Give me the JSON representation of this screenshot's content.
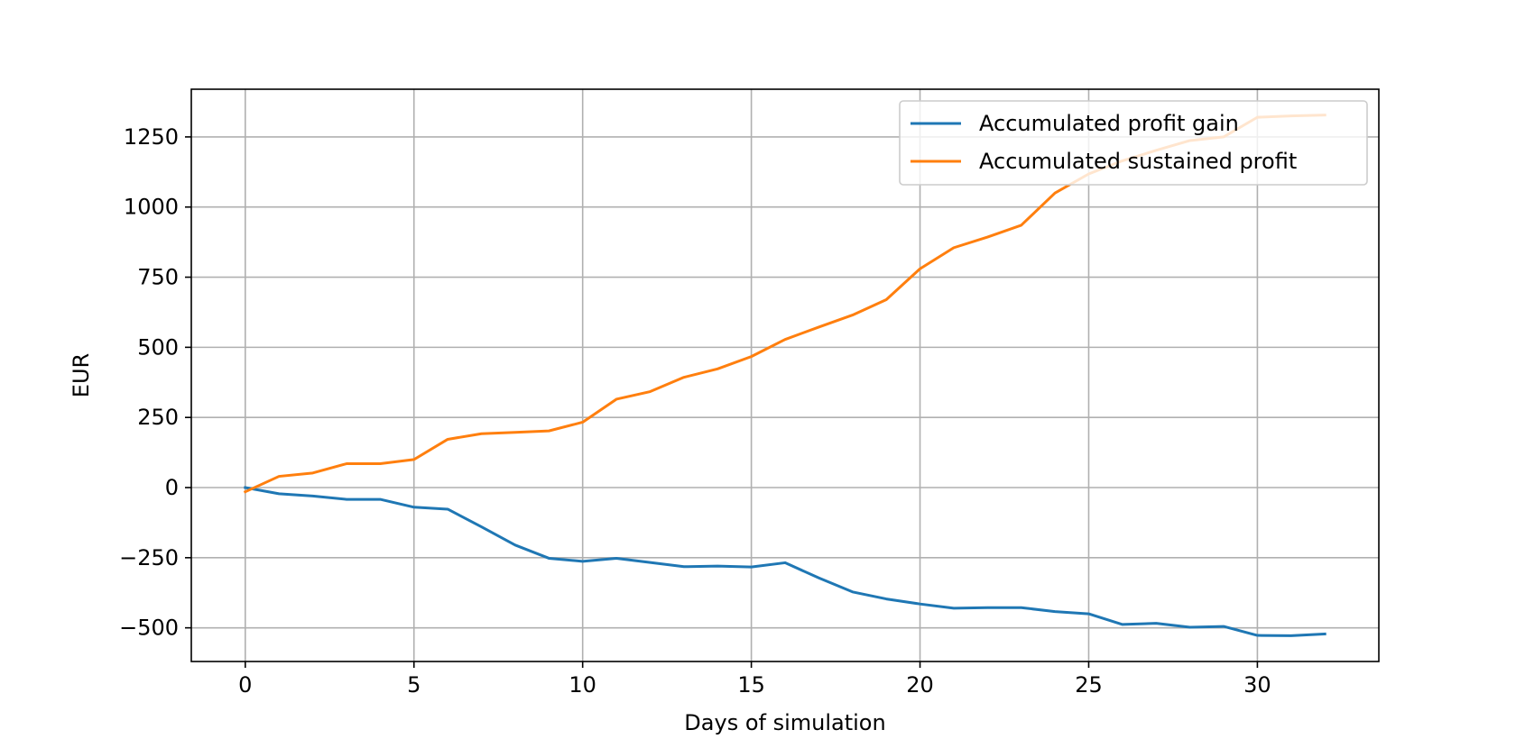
{
  "chart_data": {
    "type": "line",
    "title": "",
    "xlabel": "Days of simulation",
    "ylabel": "EUR",
    "xlim": [
      -1.6,
      33.6
    ],
    "ylim": [
      -620,
      1420
    ],
    "x_ticks": [
      0,
      5,
      10,
      15,
      20,
      25,
      30
    ],
    "y_ticks": [
      -500,
      -250,
      0,
      250,
      500,
      750,
      1000,
      1250
    ],
    "x_tick_labels": [
      "0",
      "5",
      "10",
      "15",
      "20",
      "25",
      "30"
    ],
    "y_tick_labels": [
      "−500",
      "−250",
      "0",
      "250",
      "500",
      "750",
      "1000",
      "1250"
    ],
    "grid": true,
    "legend_position": "top-right",
    "x": [
      0,
      1,
      2,
      3,
      4,
      5,
      6,
      7,
      8,
      9,
      10,
      11,
      12,
      13,
      14,
      15,
      16,
      17,
      18,
      19,
      20,
      21,
      22,
      23,
      24,
      25,
      26,
      27,
      28,
      29,
      30,
      31,
      32
    ],
    "series": [
      {
        "name": "Accumulated profit gain",
        "color": "#1f77b4",
        "values": [
          0,
          -22,
          -30,
          -42,
          -42,
          -70,
          -77,
          -140,
          -205,
          -252,
          -263,
          -252,
          -267,
          -282,
          -280,
          -283,
          -268,
          -322,
          -372,
          -397,
          -415,
          -430,
          -428,
          -428,
          -442,
          -450,
          -488,
          -484,
          -498,
          -495,
          -527,
          -528,
          -522
        ]
      },
      {
        "name": "Accumulated sustained profit",
        "color": "#ff7f0e",
        "values": [
          -15,
          40,
          52,
          85,
          85,
          100,
          172,
          192,
          197,
          202,
          233,
          315,
          342,
          393,
          423,
          467,
          528,
          572,
          615,
          670,
          780,
          855,
          893,
          935,
          1050,
          1118,
          1165,
          1202,
          1237,
          1250,
          1320,
          1325,
          1328
        ]
      }
    ]
  }
}
